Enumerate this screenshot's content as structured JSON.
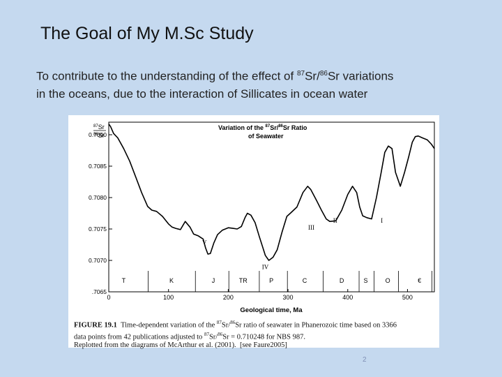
{
  "slide": {
    "title": "The Goal of My M.Sc Study",
    "subtitle": {
      "line1_pre": "To contribute to the understanding of the effect of ",
      "sup1": "87",
      "mid1": "Sr/",
      "sup2": "86",
      "line1_post": "Sr variations",
      "line2": "in the oceans, due to the interaction of Sillicates in ocean water"
    },
    "page_number": "2"
  },
  "figure": {
    "caption_label": "FIGURE 19.1",
    "caption_line1_a": "Time-dependent variation of the ",
    "caption_sup1": "87",
    "caption_mid": "Sr/",
    "caption_sup2": "86",
    "caption_line1_b": "Sr ratio of seawater in Phanerozoic time based on 3366",
    "caption_line2_a": "data points from 42 publications adjusted to ",
    "caption_line2_sup1": "87",
    "caption_line2_mid": "Sr/",
    "caption_line2_sup2": "86",
    "caption_line2_b": "Sr = 0.710248 for NBS 987.",
    "caption_line3": "Replotted from the diagrams of McArthur et al. (2001).",
    "caption_source": "[see Faure2005]"
  },
  "chart_data": {
    "type": "line",
    "title_parts": {
      "pre": "Variation of the ",
      "sup1": "87",
      "mid": "Sr/",
      "sup2": "86",
      "post": "Sr Ratio",
      "line2": "of Seawater"
    },
    "ylabel_parts": {
      "num_sup": "87",
      "num": "Sr",
      "den_sup": "86",
      "den": "Sr"
    },
    "xlabel": "Geological time, Ma",
    "xlim": [
      0,
      545
    ],
    "ylim": [
      0.7065,
      0.7092
    ],
    "x_ticks": [
      0,
      100,
      200,
      300,
      400,
      500
    ],
    "x_tick_labels": [
      "0",
      "100",
      "200",
      "300",
      "400",
      "500"
    ],
    "y_ticks": [
      0.7065,
      0.707,
      0.7075,
      0.708,
      0.7085,
      0.709
    ],
    "y_tick_labels": [
      ".7065",
      "0.7070",
      "0.7075",
      "0.7080",
      "0.7085",
      "0.7090"
    ],
    "series": [
      {
        "x": [
          0,
          3,
          8,
          15,
          25,
          35,
          45,
          55,
          65,
          72,
          80,
          90,
          100,
          106,
          112,
          120,
          128,
          136,
          142,
          150,
          158,
          162,
          166,
          170,
          176,
          182,
          190,
          200,
          208,
          215,
          222,
          228,
          232,
          238,
          245,
          252,
          258,
          262,
          268,
          275,
          282,
          290,
          298,
          305,
          315,
          325,
          333,
          338,
          348,
          356,
          364,
          370,
          380,
          390,
          400,
          408,
          415,
          420,
          425,
          432,
          440,
          448,
          456,
          462,
          468,
          474,
          480,
          488,
          495,
          502,
          508,
          513,
          518,
          525,
          533,
          540,
          545
        ],
        "y": [
          0.70917,
          0.70913,
          0.70902,
          0.70895,
          0.70878,
          0.70858,
          0.70833,
          0.70808,
          0.70786,
          0.7078,
          0.70778,
          0.7077,
          0.70758,
          0.70753,
          0.70751,
          0.70749,
          0.70762,
          0.70753,
          0.70742,
          0.70739,
          0.70734,
          0.7072,
          0.7071,
          0.70711,
          0.70728,
          0.70741,
          0.70748,
          0.70752,
          0.70751,
          0.7075,
          0.70754,
          0.70768,
          0.70775,
          0.70772,
          0.7076,
          0.70738,
          0.7072,
          0.70708,
          0.707,
          0.70705,
          0.70717,
          0.70745,
          0.7077,
          0.70776,
          0.70785,
          0.70808,
          0.70818,
          0.70813,
          0.70795,
          0.7078,
          0.70766,
          0.70762,
          0.70763,
          0.7078,
          0.70805,
          0.70818,
          0.70808,
          0.70785,
          0.70771,
          0.70768,
          0.70766,
          0.708,
          0.7084,
          0.70872,
          0.70882,
          0.70878,
          0.7084,
          0.70818,
          0.7084,
          0.70865,
          0.70888,
          0.70897,
          0.70898,
          0.70895,
          0.70892,
          0.70885,
          0.70878
        ]
      }
    ],
    "annotations": [
      {
        "label": "V",
        "x": 160,
        "y": 0.70725
      },
      {
        "label": "IV",
        "x": 262,
        "y": 0.70686
      },
      {
        "label": "III",
        "x": 339,
        "y": 0.70749
      },
      {
        "label": "II",
        "x": 379,
        "y": 0.7076
      },
      {
        "label": "I",
        "x": 457,
        "y": 0.7076
      }
    ],
    "periods": [
      {
        "label": "T",
        "center": 25
      },
      {
        "label": "K",
        "center": 105
      },
      {
        "label": "J",
        "center": 175
      },
      {
        "label": "TR",
        "center": 225
      },
      {
        "label": "P",
        "center": 272
      },
      {
        "label": "C",
        "center": 328
      },
      {
        "label": "D",
        "center": 390
      },
      {
        "label": "S",
        "center": 430
      },
      {
        "label": "O",
        "center": 467
      },
      {
        "label": "€",
        "center": 520
      }
    ],
    "period_boundaries": [
      66,
      145,
      201,
      252,
      299,
      359,
      419,
      444,
      485,
      541
    ],
    "grid": false,
    "legend": "none"
  }
}
